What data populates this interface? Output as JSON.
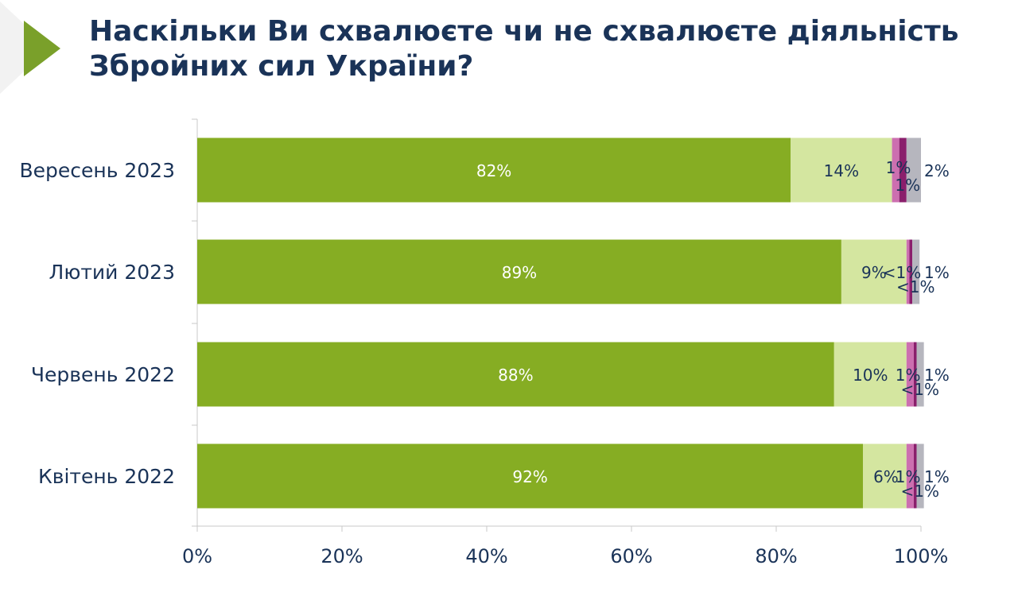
{
  "title": {
    "line1": "Наскільки Ви схвалюєте чи не схвалюєте діяльність",
    "line2": "Збройних сил України?"
  },
  "colors": {
    "title": "#1a3358",
    "accent_arrow": "#7aa02a",
    "series": [
      "#86ad23",
      "#d4e6a0",
      "#cc6fb0",
      "#8a1f6c",
      "#b6b6be"
    ]
  },
  "chart_data": {
    "type": "bar",
    "orientation": "horizontal",
    "stacked": true,
    "categories": [
      "Вересень 2023",
      "Лютий 2023",
      "Червень 2022",
      "Квітень 2022"
    ],
    "series": [
      {
        "values": [
          82,
          89,
          88,
          92
        ],
        "labels": [
          "82%",
          "89%",
          "88%",
          "92%"
        ]
      },
      {
        "values": [
          14,
          9,
          10,
          6
        ],
        "labels": [
          "14%",
          "9%",
          "10%",
          "6%"
        ]
      },
      {
        "values": [
          1,
          0.4,
          1,
          1
        ],
        "labels": [
          "1%",
          "<1%",
          "1%",
          "1%"
        ]
      },
      {
        "values": [
          1,
          0.4,
          0.4,
          0.4
        ],
        "labels": [
          "1%",
          "<1%",
          "<1%",
          "<1%"
        ]
      },
      {
        "values": [
          2,
          1,
          1,
          1
        ],
        "labels": [
          "2%",
          "1%",
          "1%",
          "1%"
        ]
      }
    ],
    "xlim": [
      0,
      100
    ],
    "xticks": [
      "0%",
      "20%",
      "40%",
      "60%",
      "80%",
      "100%"
    ],
    "grid": false,
    "legend": "none"
  }
}
